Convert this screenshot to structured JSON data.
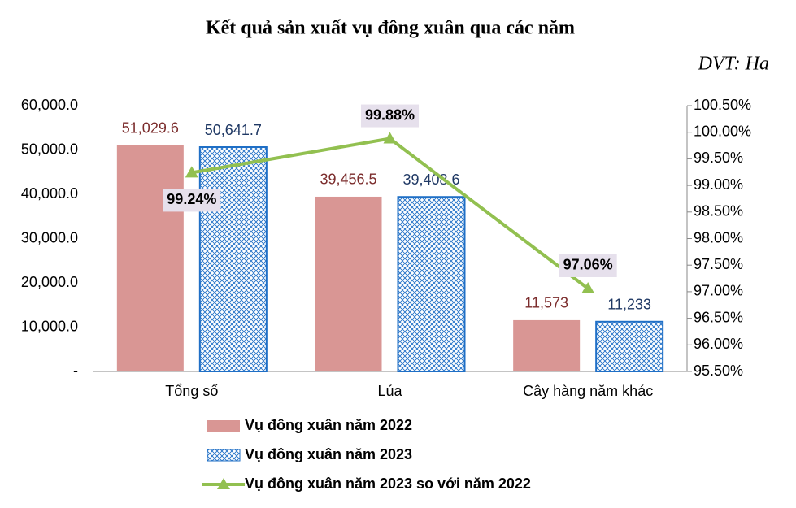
{
  "chart_data": {
    "type": "bar",
    "title": "Kết quả sản xuất vụ đông xuân qua các năm",
    "subtitle": "ĐVT: Ha",
    "categories": [
      "Tổng số",
      "Lúa",
      "Cây hàng năm khác"
    ],
    "series": [
      {
        "name": "Vụ đông xuân năm 2022",
        "type": "bar",
        "color": "#d99694",
        "label_color": "#7b2c2c",
        "values": [
          51029.6,
          39456.5,
          11573
        ],
        "value_labels": [
          "51,029.6",
          "39,456.5",
          "11,573"
        ]
      },
      {
        "name": "Vụ đông xuân năm 2023",
        "type": "bar",
        "color": "#1f6fc6",
        "hatch": true,
        "label_color": "#1f3864",
        "values": [
          50641.7,
          39408.6,
          11233
        ],
        "value_labels": [
          "50,641.7",
          "39,408.6",
          "11,233"
        ]
      },
      {
        "name": "Vụ đông xuân năm 2023 so với năm 2022",
        "type": "line",
        "axis": "y2",
        "color": "#92c050",
        "label_color": "#000000",
        "values": [
          99.24,
          99.88,
          97.06
        ],
        "value_labels": [
          "99.24%",
          "99.88%",
          "97.06%"
        ]
      }
    ],
    "ylim": [
      0,
      60000
    ],
    "yticks": [
      {
        "value": 0,
        "label": "-"
      },
      {
        "value": 10000,
        "label": "10,000.0"
      },
      {
        "value": 20000,
        "label": "20,000.0"
      },
      {
        "value": 30000,
        "label": "30,000.0"
      },
      {
        "value": 40000,
        "label": "40,000.0"
      },
      {
        "value": 50000,
        "label": "50,000.0"
      },
      {
        "value": 60000,
        "label": "60,000.0"
      }
    ],
    "y2lim": [
      95.5,
      100.5
    ],
    "y2ticks": [
      {
        "value": 95.5,
        "label": "95.50%"
      },
      {
        "value": 96,
        "label": "96.00%"
      },
      {
        "value": 96.5,
        "label": "96.50%"
      },
      {
        "value": 97,
        "label": "97.00%"
      },
      {
        "value": 97.5,
        "label": "97.50%"
      },
      {
        "value": 98,
        "label": "98.00%"
      },
      {
        "value": 98.5,
        "label": "98.50%"
      },
      {
        "value": 99,
        "label": "99.00%"
      },
      {
        "value": 99.5,
        "label": "99.50%"
      },
      {
        "value": 100,
        "label": "100.00%"
      },
      {
        "value": 100.5,
        "label": "100.50%"
      }
    ],
    "grid": false
  }
}
